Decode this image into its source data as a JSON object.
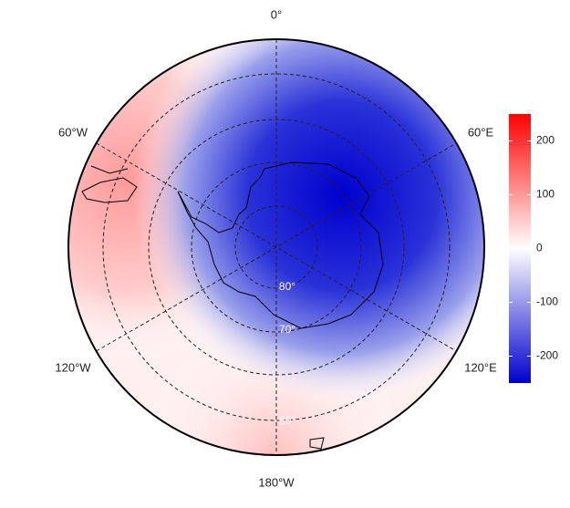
{
  "map": {
    "longitude_labels": [
      "0°",
      "60°E",
      "120°E",
      "180°W",
      "120°W",
      "60°W"
    ],
    "latitude_labels": [
      "80°",
      "70°",
      "60°"
    ],
    "colorbar": {
      "lim": [
        -250,
        250
      ],
      "ticks": [
        -200,
        -100,
        0,
        100,
        200
      ],
      "colors": [
        "#0000cd",
        "#ffffff",
        "#ff0000"
      ]
    }
  }
}
